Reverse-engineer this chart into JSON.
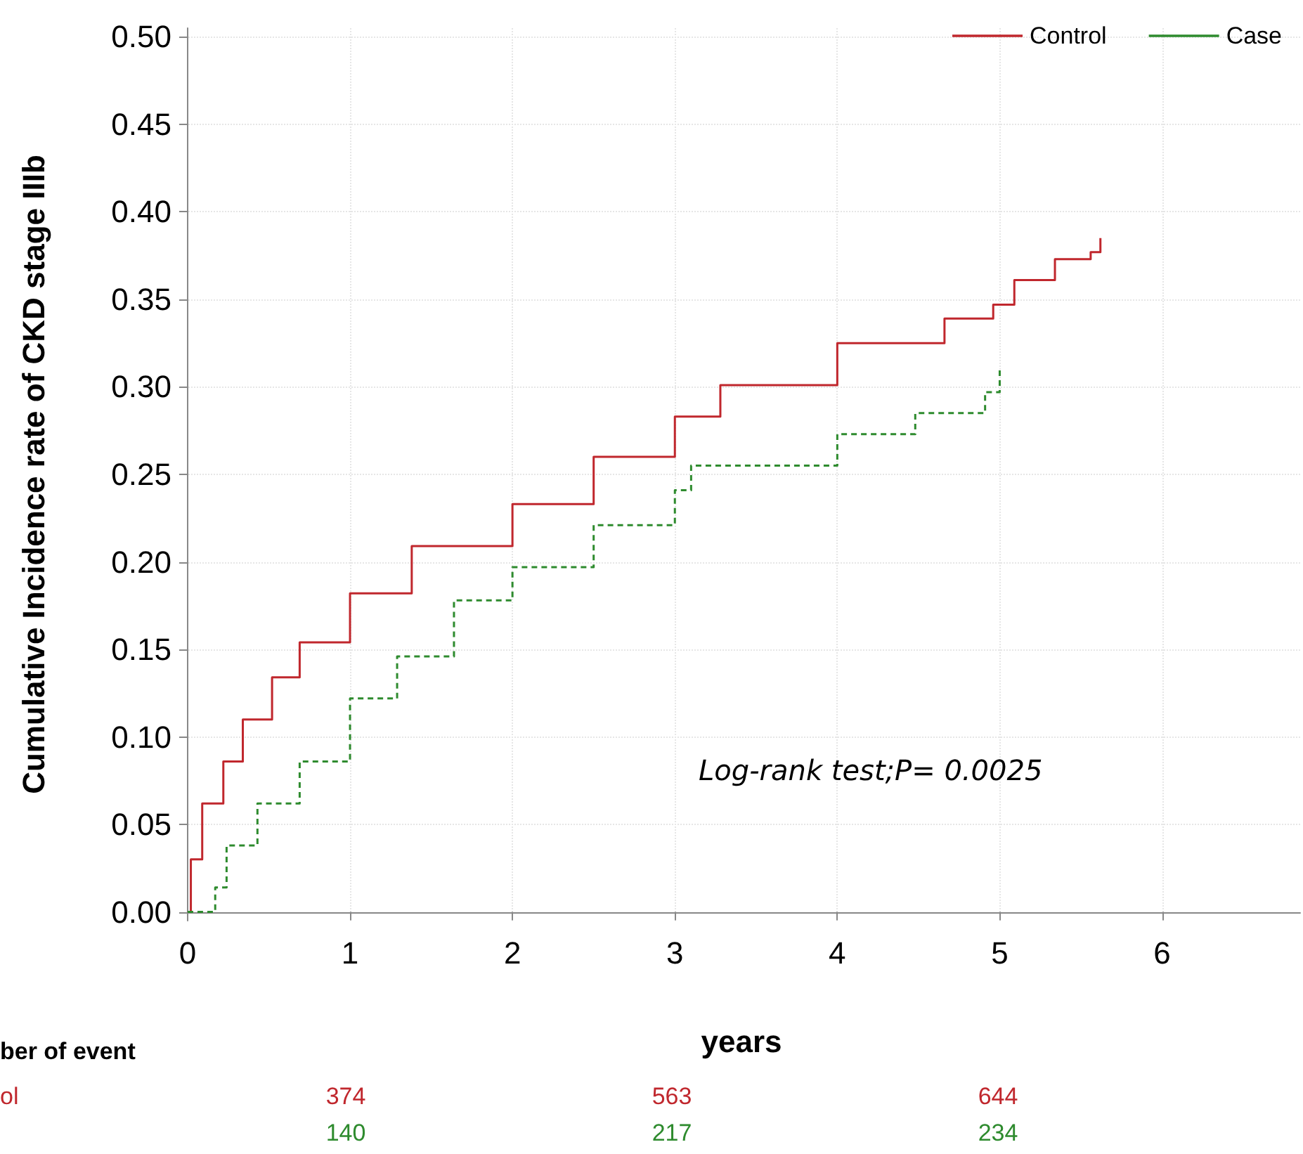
{
  "chart_data": {
    "type": "step",
    "xlabel": "years",
    "ylabel": "Cumulative Incidence rate of CKD stage IIIb",
    "xlim": [
      -0.03,
      6.85
    ],
    "xticks": [
      0,
      1,
      2,
      3,
      4,
      5,
      6
    ],
    "ylim": [
      -0.005,
      0.505
    ],
    "yticks": [
      {
        "value": 0,
        "label": "0.00"
      },
      {
        "value": 0.05,
        "label": "0.05"
      },
      {
        "value": 0.1,
        "label": "0.10"
      },
      {
        "value": 0.15,
        "label": "0.15"
      },
      {
        "value": 0.2,
        "label": "0.20"
      },
      {
        "value": 0.25,
        "label": "0.25"
      },
      {
        "value": 0.3,
        "label": "0.30"
      },
      {
        "value": 0.35,
        "label": "0.35"
      },
      {
        "value": 0.4,
        "label": "0.40"
      },
      {
        "value": 0.45,
        "label": "0.45"
      },
      {
        "value": 0.5,
        "label": "0.50"
      }
    ],
    "grid": true,
    "legend": "top right",
    "marker": "none",
    "series": [
      {
        "name": "Control",
        "color": "#c0272d",
        "line_style": "solid",
        "x": [
          0,
          0.02,
          0.09,
          0.22,
          0.34,
          0.52,
          0.69,
          1,
          1.38,
          2,
          2.5,
          3,
          3.28,
          4,
          4.66,
          4.96,
          5.09,
          5.34,
          5.56,
          5.62
        ],
        "values": [
          0,
          0.03,
          0.062,
          0.086,
          0.11,
          0.134,
          0.154,
          0.182,
          0.209,
          0.233,
          0.26,
          0.283,
          0.301,
          0.325,
          0.339,
          0.347,
          0.361,
          0.373,
          0.377,
          0.385
        ]
      },
      {
        "name": "Case",
        "color": "#2e8b2e",
        "line_style": "dashed",
        "x": [
          0,
          0.17,
          0.24,
          0.43,
          0.69,
          1,
          1.29,
          1.64,
          2,
          2.5,
          3,
          3.1,
          4,
          4.48,
          4.91,
          5
        ],
        "values": [
          0,
          0.014,
          0.038,
          0.062,
          0.086,
          0.122,
          0.146,
          0.178,
          0.197,
          0.221,
          0.241,
          0.255,
          0.273,
          0.285,
          0.297,
          0.311
        ]
      }
    ],
    "annotations": [
      "Log-rank test;P= 0.0025",
      "ber of event",
      "ol",
      "374",
      "563",
      "644",
      "140",
      "217",
      "234"
    ]
  }
}
